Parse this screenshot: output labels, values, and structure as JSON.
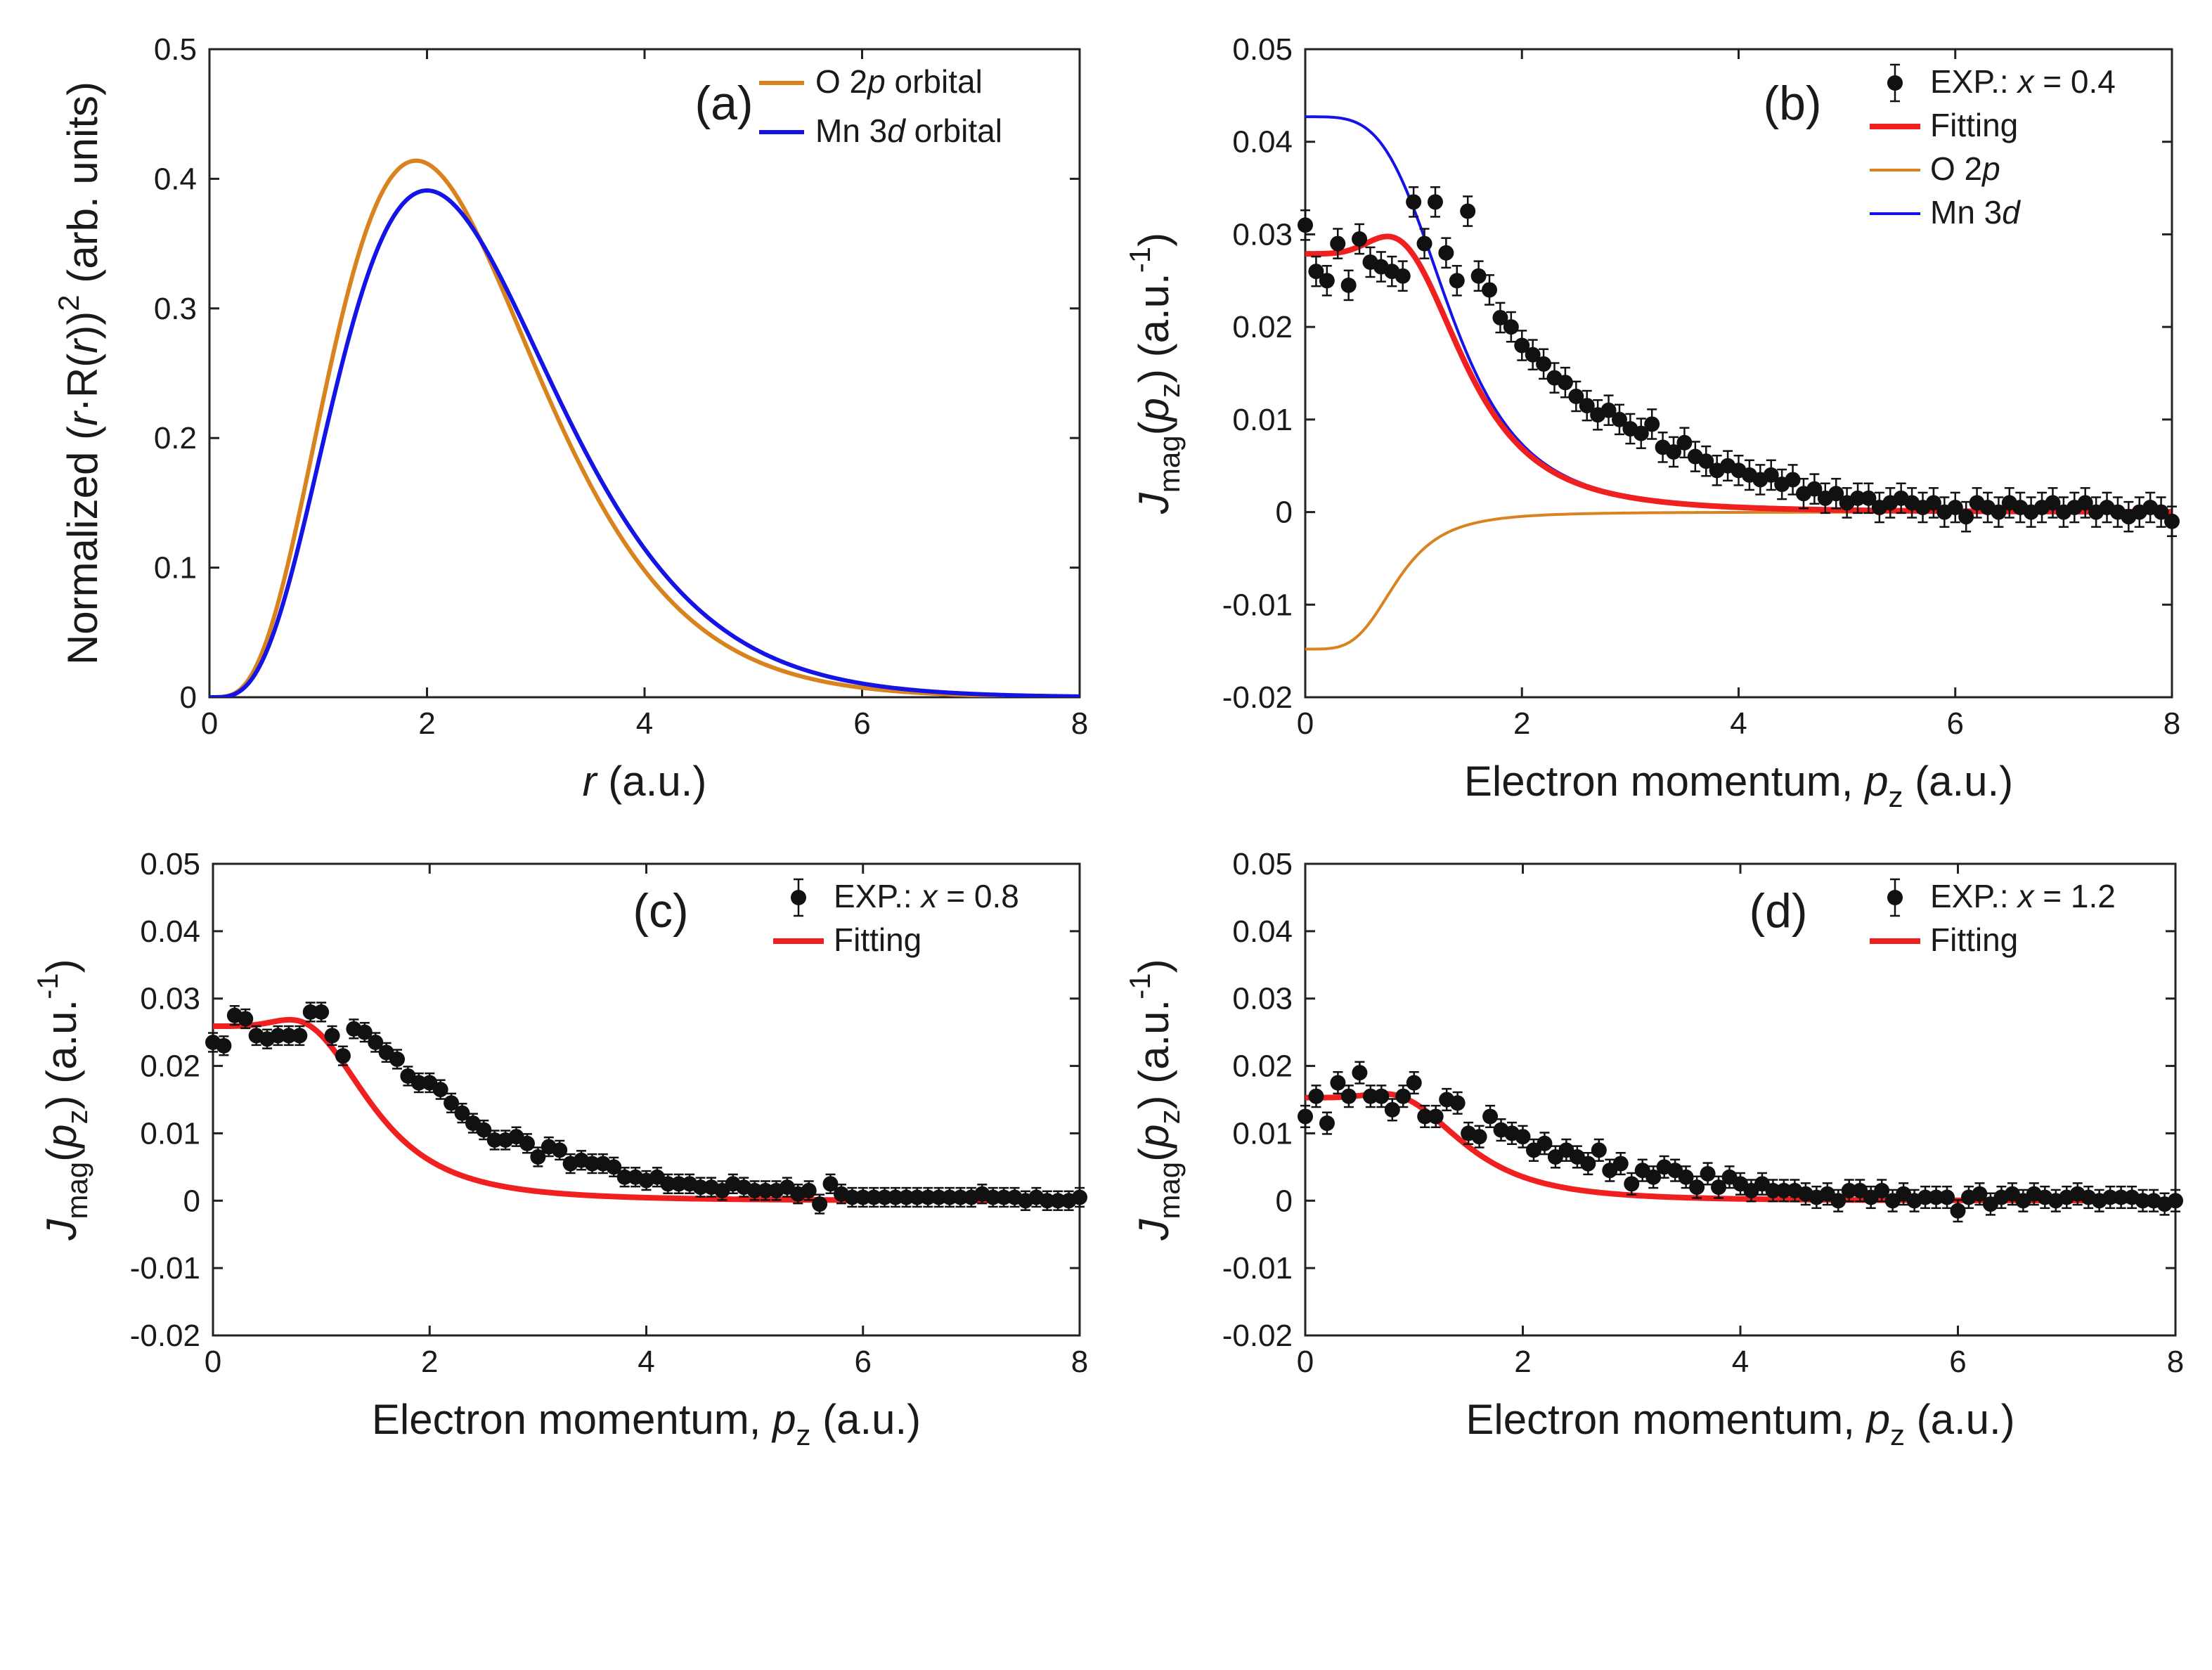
{
  "figure": {
    "colors": {
      "o2p": "#D9831F",
      "mn3d": "#1414E6",
      "fit": "#F02020",
      "exp": "#111111",
      "axis": "#222222"
    }
  },
  "chart_data": [
    {
      "id": "a",
      "type": "line",
      "panel_label": "(a)",
      "xlabel": {
        "var": "r",
        "unit": " (a.u.)"
      },
      "ylabel": {
        "prefix": "Normalized (",
        "var": "r",
        "middle": "·R(",
        "var2": "r",
        "close": "))",
        "sup": "2",
        "unit": " (arb. units)"
      },
      "xlim": [
        0,
        8
      ],
      "ylim": [
        0,
        0.5
      ],
      "xticks": [
        "0",
        "2",
        "4",
        "6",
        "8"
      ],
      "yticks": [
        "0",
        "0.1",
        "0.2",
        "0.3",
        "0.4",
        "0.5"
      ],
      "legend_position": "top-right",
      "series": [
        {
          "name": "O 2p orbital",
          "legend_parts": [
            "O 2",
            "p",
            " orbital"
          ],
          "color_key": "o2p",
          "model": "radial",
          "params": {
            "n": 2,
            "rpeak": 1.9,
            "peak": 0.414
          }
        },
        {
          "name": "Mn 3d orbital",
          "legend_parts": [
            "Mn 3",
            "d",
            " orbital"
          ],
          "color_key": "mn3d",
          "model": "radial",
          "params": {
            "n": 2,
            "rpeak": 2.0,
            "peak": 0.391
          }
        }
      ]
    },
    {
      "id": "b",
      "type": "scatter",
      "panel_label": "(b)",
      "xlabel": {
        "text": "Electron momentum, ",
        "var": "p",
        "sub": "z",
        "unit": " (a.u.)"
      },
      "ylabel": {
        "var": "J",
        "sub": "mag",
        "open": "(",
        "var2": "p",
        "sub2": "z",
        "close": ")",
        "unit": " (a.u.",
        "sup": "-1",
        "end": ")"
      },
      "xlim": [
        0,
        8
      ],
      "ylim": [
        -0.02,
        0.05
      ],
      "xticks": [
        "0",
        "2",
        "4",
        "6",
        "8"
      ],
      "yticks": [
        "-0.02",
        "-0.01",
        "0",
        "0.01",
        "0.02",
        "0.03",
        "0.04",
        "0.05"
      ],
      "legend_position": "top-right",
      "legend": [
        {
          "kind": "point",
          "parts": [
            "EXP.: ",
            "x",
            " = 0.4"
          ]
        },
        {
          "kind": "line",
          "color_key": "fit",
          "parts": [
            "Fitting"
          ]
        },
        {
          "kind": "thinline",
          "color_key": "o2p",
          "parts": [
            "O 2",
            "p"
          ]
        },
        {
          "kind": "thinline",
          "color_key": "mn3d",
          "parts": [
            "Mn 3",
            "d"
          ]
        }
      ],
      "curves": [
        {
          "name": "Fitting",
          "color_key": "fit",
          "width": 8,
          "model": "comb",
          "params": {
            "a": 0.0427,
            "s": 1.35,
            "b": -0.0148,
            "s2": 0.85
          }
        },
        {
          "name": "O 2p",
          "color_key": "o2p",
          "width": 4,
          "model": "logistic",
          "params": {
            "a": -0.0148,
            "s": 0.85
          }
        },
        {
          "name": "Mn 3d",
          "color_key": "mn3d",
          "width": 4,
          "model": "logistic",
          "params": {
            "a": 0.0427,
            "s": 1.35
          }
        }
      ],
      "points": {
        "x": [
          0,
          0.1,
          0.2,
          0.3,
          0.4,
          0.5,
          0.6,
          0.7,
          0.8,
          0.9,
          1.0,
          1.1,
          1.2,
          1.3,
          1.4,
          1.5,
          1.6,
          1.7,
          1.8,
          1.9,
          2.0,
          2.1,
          2.2,
          2.3,
          2.4,
          2.5,
          2.6,
          2.7,
          2.8,
          2.9,
          3.0,
          3.1,
          3.2,
          3.3,
          3.4,
          3.5,
          3.6,
          3.7,
          3.8,
          3.9,
          4.0,
          4.1,
          4.2,
          4.3,
          4.4,
          4.5,
          4.6,
          4.7,
          4.8,
          4.9,
          5.0,
          5.1,
          5.2,
          5.3,
          5.4,
          5.5,
          5.6,
          5.7,
          5.8,
          5.9,
          6.0,
          6.1,
          6.2,
          6.3,
          6.4,
          6.5,
          6.6,
          6.7,
          6.8,
          6.9,
          7.0,
          7.1,
          7.2,
          7.3,
          7.4,
          7.5,
          7.6,
          7.7,
          7.8,
          7.9,
          8.0
        ],
        "y": [
          0.031,
          0.026,
          0.025,
          0.029,
          0.0245,
          0.0295,
          0.027,
          0.0265,
          0.026,
          0.0255,
          0.0335,
          0.029,
          0.0335,
          0.028,
          0.025,
          0.0325,
          0.0255,
          0.024,
          0.021,
          0.02,
          0.018,
          0.017,
          0.016,
          0.0145,
          0.014,
          0.0125,
          0.0115,
          0.0105,
          0.011,
          0.01,
          0.009,
          0.0085,
          0.0095,
          0.007,
          0.0065,
          0.0075,
          0.006,
          0.0055,
          0.0045,
          0.005,
          0.0045,
          0.004,
          0.0035,
          0.004,
          0.003,
          0.0035,
          0.002,
          0.0025,
          0.0015,
          0.002,
          0.001,
          0.0015,
          0.0015,
          0.0005,
          0.001,
          0.0015,
          0.001,
          0.0005,
          0.001,
          0.0,
          0.0005,
          -0.0005,
          0.001,
          0.0005,
          0.0,
          0.001,
          0.0005,
          0.0,
          0.0005,
          0.001,
          0.0,
          0.0005,
          0.001,
          0.0,
          0.0005,
          0.0,
          -0.0005,
          0.0,
          0.0005,
          0.0,
          -0.001
        ],
        "err": 0.0016
      }
    },
    {
      "id": "c",
      "type": "scatter",
      "panel_label": "(c)",
      "xlabel": {
        "text": "Electron momentum, ",
        "var": "p",
        "sub": "z",
        "unit": " (a.u.)"
      },
      "ylabel": {
        "var": "J",
        "sub": "mag",
        "open": "(",
        "var2": "p",
        "sub2": "z",
        "close": ")",
        "unit": " (a.u.",
        "sup": "-1",
        "end": ")"
      },
      "xlim": [
        0,
        8
      ],
      "ylim": [
        -0.02,
        0.05
      ],
      "xticks": [
        "0",
        "2",
        "4",
        "6",
        "8"
      ],
      "yticks": [
        "-0.02",
        "-0.01",
        "0",
        "0.01",
        "0.02",
        "0.03",
        "0.04",
        "0.05"
      ],
      "legend_position": "top-right",
      "legend": [
        {
          "kind": "point",
          "parts": [
            "EXP.: ",
            "x",
            " = 0.8"
          ]
        },
        {
          "kind": "line",
          "color_key": "fit",
          "parts": [
            "Fitting"
          ]
        }
      ],
      "curves": [
        {
          "name": "Fitting",
          "color_key": "fit",
          "width": 8,
          "model": "comb",
          "params": {
            "a": 0.0368,
            "s": 1.35,
            "b": -0.0109,
            "s2": 0.85
          }
        }
      ],
      "points": {
        "x": [
          0,
          0.1,
          0.2,
          0.3,
          0.4,
          0.5,
          0.6,
          0.7,
          0.8,
          0.9,
          1.0,
          1.1,
          1.2,
          1.3,
          1.4,
          1.5,
          1.6,
          1.7,
          1.8,
          1.9,
          2.0,
          2.1,
          2.2,
          2.3,
          2.4,
          2.5,
          2.6,
          2.7,
          2.8,
          2.9,
          3.0,
          3.1,
          3.2,
          3.3,
          3.4,
          3.5,
          3.6,
          3.7,
          3.8,
          3.9,
          4.0,
          4.1,
          4.2,
          4.3,
          4.4,
          4.5,
          4.6,
          4.7,
          4.8,
          4.9,
          5.0,
          5.1,
          5.2,
          5.3,
          5.4,
          5.5,
          5.6,
          5.7,
          5.8,
          5.9,
          6.0,
          6.1,
          6.2,
          6.3,
          6.4,
          6.5,
          6.6,
          6.7,
          6.8,
          6.9,
          7.0,
          7.1,
          7.2,
          7.3,
          7.4,
          7.5,
          7.6,
          7.7,
          7.8,
          7.9,
          8.0
        ],
        "y": [
          0.0235,
          0.023,
          0.0275,
          0.027,
          0.0245,
          0.024,
          0.0245,
          0.0245,
          0.0245,
          0.028,
          0.028,
          0.0245,
          0.0215,
          0.0255,
          0.025,
          0.0235,
          0.022,
          0.021,
          0.0185,
          0.0175,
          0.0175,
          0.0165,
          0.0145,
          0.013,
          0.0115,
          0.0105,
          0.009,
          0.009,
          0.0095,
          0.0085,
          0.0065,
          0.008,
          0.0075,
          0.0055,
          0.006,
          0.0055,
          0.0055,
          0.005,
          0.0035,
          0.0035,
          0.003,
          0.0035,
          0.0025,
          0.0025,
          0.0025,
          0.002,
          0.002,
          0.0015,
          0.0025,
          0.002,
          0.0015,
          0.0015,
          0.0015,
          0.002,
          0.001,
          0.0015,
          -0.0005,
          0.0025,
          0.001,
          0.0005,
          0.0005,
          0.0005,
          0.0005,
          0.0005,
          0.0005,
          0.0005,
          0.0005,
          0.0005,
          0.0005,
          0.0005,
          0.0005,
          0.001,
          0.0005,
          0.0005,
          0.0005,
          0.0,
          0.0005,
          0.0,
          0.0,
          0.0,
          0.0005
        ],
        "err": 0.0014
      }
    },
    {
      "id": "d",
      "type": "scatter",
      "panel_label": "(d)",
      "xlabel": {
        "text": "Electron momentum, ",
        "var": "p",
        "sub": "z",
        "unit": " (a.u.)"
      },
      "ylabel": {
        "var": "J",
        "sub": "mag",
        "open": "(",
        "var2": "p",
        "sub2": "z",
        "close": ")",
        "unit": " (a.u.",
        "sup": "-1",
        "end": ")"
      },
      "xlim": [
        0,
        8
      ],
      "ylim": [
        -0.02,
        0.05
      ],
      "xticks": [
        "0",
        "2",
        "4",
        "6",
        "8"
      ],
      "yticks": [
        "-0.02",
        "-0.01",
        "0",
        "0.01",
        "0.02",
        "0.03",
        "0.04",
        "0.05"
      ],
      "legend_position": "top-right",
      "legend": [
        {
          "kind": "point",
          "parts": [
            "EXP.: ",
            "x",
            " = 1.2"
          ]
        },
        {
          "kind": "line",
          "color_key": "fit",
          "parts": [
            "Fitting"
          ]
        }
      ],
      "curves": [
        {
          "name": "Fitting",
          "color_key": "fit",
          "width": 8,
          "model": "comb",
          "params": {
            "a": 0.0218,
            "s": 1.35,
            "b": -0.0065,
            "s2": 0.85
          }
        }
      ],
      "points": {
        "x": [
          0,
          0.1,
          0.2,
          0.3,
          0.4,
          0.5,
          0.6,
          0.7,
          0.8,
          0.9,
          1.0,
          1.1,
          1.2,
          1.3,
          1.4,
          1.5,
          1.6,
          1.7,
          1.8,
          1.9,
          2.0,
          2.1,
          2.2,
          2.3,
          2.4,
          2.5,
          2.6,
          2.7,
          2.8,
          2.9,
          3.0,
          3.1,
          3.2,
          3.3,
          3.4,
          3.5,
          3.6,
          3.7,
          3.8,
          3.9,
          4.0,
          4.1,
          4.2,
          4.3,
          4.4,
          4.5,
          4.6,
          4.7,
          4.8,
          4.9,
          5.0,
          5.1,
          5.2,
          5.3,
          5.4,
          5.5,
          5.6,
          5.7,
          5.8,
          5.9,
          6.0,
          6.1,
          6.2,
          6.3,
          6.4,
          6.5,
          6.6,
          6.7,
          6.8,
          6.9,
          7.0,
          7.1,
          7.2,
          7.3,
          7.4,
          7.5,
          7.6,
          7.7,
          7.8,
          7.9,
          8.0
        ],
        "y": [
          0.0125,
          0.0155,
          0.0115,
          0.0175,
          0.0155,
          0.019,
          0.0155,
          0.0155,
          0.0135,
          0.0155,
          0.0175,
          0.0125,
          0.0125,
          0.015,
          0.0145,
          0.01,
          0.0095,
          0.0125,
          0.0105,
          0.01,
          0.0095,
          0.0075,
          0.0085,
          0.0065,
          0.0075,
          0.0065,
          0.0055,
          0.0075,
          0.0045,
          0.0055,
          0.0025,
          0.0045,
          0.0035,
          0.005,
          0.0045,
          0.0035,
          0.002,
          0.004,
          0.002,
          0.0035,
          0.0025,
          0.0015,
          0.0025,
          0.0015,
          0.0015,
          0.0015,
          0.001,
          0.0005,
          0.001,
          0.0,
          0.0015,
          0.0015,
          0.0005,
          0.0015,
          0.0,
          0.001,
          0.0,
          0.0005,
          0.0005,
          0.0005,
          -0.0015,
          0.0005,
          0.001,
          -0.0005,
          0.0005,
          0.001,
          0.0,
          0.001,
          0.0005,
          0.0,
          0.0005,
          0.001,
          0.0005,
          0.0,
          0.0005,
          0.0005,
          0.0005,
          0.0,
          0.0,
          -0.0005,
          0.0
        ],
        "err": 0.0016
      }
    }
  ]
}
